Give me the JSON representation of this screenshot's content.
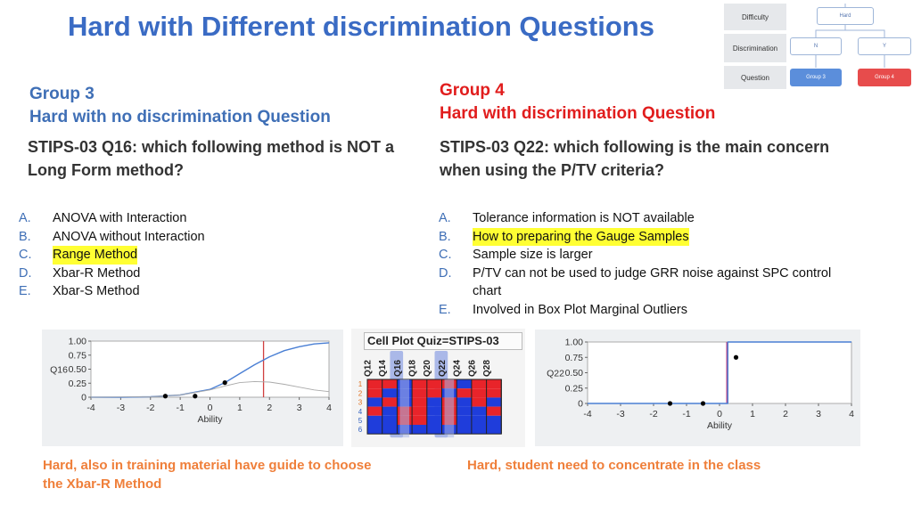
{
  "title": "Hard with Different discrimination Questions",
  "mini_diagram": {
    "rows": [
      "Difficulty",
      "Discrimination",
      "Question"
    ],
    "root": "Hard",
    "branches": [
      "N",
      "Y"
    ],
    "leaves": [
      "Group 3",
      "Group 4"
    ],
    "colors": {
      "left_leaf": "#5b8edb",
      "right_leaf": "#e74c4c"
    }
  },
  "left": {
    "group": "Group 3",
    "subtitle": "Hard with no discrimination Question",
    "question": "STIPS-03 Q16: which following method is NOT a Long Form method?",
    "options": [
      {
        "letter": "A.",
        "text": "ANOVA with Interaction",
        "highlight": false
      },
      {
        "letter": "B.",
        "text": "ANOVA without Interaction",
        "highlight": false
      },
      {
        "letter": "C.",
        "text": "Range Method",
        "highlight": true
      },
      {
        "letter": "D.",
        "text": "Xbar-R Method",
        "highlight": false
      },
      {
        "letter": "E.",
        "text": "Xbar-S Method",
        "highlight": false
      }
    ],
    "caption": "Hard, also in training material have guide to choose the Xbar-R Method"
  },
  "right": {
    "group": "Group 4",
    "subtitle": "Hard with discrimination Question",
    "question": "STIPS-03 Q22: which following is the main concern when using the P/TV criteria?",
    "options": [
      {
        "letter": "A.",
        "text": "Tolerance information is NOT available",
        "highlight": false
      },
      {
        "letter": "B.",
        "text": "How to preparing the Gauge Samples",
        "highlight": true
      },
      {
        "letter": "C.",
        "text": "Sample size is larger",
        "highlight": false
      },
      {
        "letter": "D.",
        "text": "P/TV can not be used to judge GRR noise against SPC control chart",
        "highlight": false
      },
      {
        "letter": "E.",
        "text": "Involved in Box Plot Marginal Outliers",
        "highlight": false
      }
    ],
    "caption": "Hard, student need to concentrate in the class"
  },
  "chart_data": [
    {
      "type": "line",
      "ylabel": "Q16",
      "xlabel": "Ability",
      "xlim": [
        -4,
        4
      ],
      "ylim": [
        0,
        1
      ],
      "x_ticks": [
        -4,
        -3,
        -2,
        -1,
        0,
        1,
        2,
        3,
        4
      ],
      "y_ticks": [
        "0",
        "0.25",
        "0.50",
        "0.75",
        "1.00"
      ],
      "series": [
        {
          "style": "curve",
          "color": "#4a7fd4",
          "x": [
            -4,
            -3,
            -2,
            -1,
            0,
            0.5,
            1,
            1.5,
            2,
            2.5,
            3,
            3.5,
            4
          ],
          "values": [
            0.0,
            0.0,
            0.01,
            0.04,
            0.14,
            0.26,
            0.42,
            0.58,
            0.72,
            0.83,
            0.9,
            0.95,
            0.97
          ]
        },
        {
          "style": "curve",
          "color": "#aaaaaa",
          "x": [
            -4,
            -2,
            -1,
            0,
            0.5,
            1,
            1.5,
            2,
            2.5,
            3,
            3.5,
            4
          ],
          "values": [
            0.0,
            0.01,
            0.04,
            0.13,
            0.2,
            0.26,
            0.28,
            0.27,
            0.23,
            0.18,
            0.13,
            0.1
          ]
        },
        {
          "style": "points",
          "color": "#000000",
          "x": [
            -1.5,
            -0.5,
            0.5
          ],
          "values": [
            0.02,
            0.02,
            0.26
          ]
        }
      ],
      "vline": {
        "x": 1.8,
        "color": "#d04040"
      }
    },
    {
      "type": "line",
      "ylabel": "Q22",
      "xlabel": "Ability",
      "xlim": [
        -4,
        4
      ],
      "ylim": [
        0,
        1
      ],
      "x_ticks": [
        -4,
        -3,
        -2,
        -1,
        0,
        1,
        2,
        3,
        4
      ],
      "y_ticks": [
        "0",
        "0.25",
        "0.50",
        "0.75",
        "1.00"
      ],
      "series": [
        {
          "style": "step",
          "color": "#4a7fd4",
          "x": [
            -4,
            0.25,
            0.25,
            4
          ],
          "values": [
            0.0,
            0.0,
            1.0,
            1.0
          ]
        },
        {
          "style": "points",
          "color": "#000000",
          "x": [
            -1.5,
            -0.5,
            0.5
          ],
          "values": [
            0.0,
            0.0,
            0.75
          ]
        }
      ],
      "vline": {
        "x": 0.22,
        "color": "#c04080"
      }
    },
    {
      "type": "heatmap",
      "title": "Cell Plot Quiz=STIPS-03",
      "columns": [
        "Q12",
        "Q14",
        "Q16",
        "Q18",
        "Q20",
        "Q22",
        "Q24",
        "Q26",
        "Q28"
      ],
      "rows": [
        "1",
        "2",
        "3",
        "4",
        "5",
        "6"
      ],
      "colors": {
        "correct": "#e8242a",
        "incorrect": "#1f3ddb",
        "highlight": "#aab8e8"
      },
      "highlight_columns": [
        "Q16",
        "Q22"
      ],
      "cells": [
        [
          1,
          1,
          0,
          1,
          1,
          1,
          0,
          1,
          1
        ],
        [
          1,
          0,
          0,
          1,
          1,
          0,
          1,
          1,
          1
        ],
        [
          0,
          1,
          0,
          1,
          0,
          1,
          0,
          1,
          0
        ],
        [
          1,
          0,
          1,
          1,
          0,
          1,
          0,
          0,
          1
        ],
        [
          0,
          0,
          1,
          1,
          0,
          1,
          0,
          0,
          0
        ],
        [
          0,
          0,
          0,
          0,
          0,
          0,
          0,
          0,
          0
        ]
      ]
    }
  ]
}
